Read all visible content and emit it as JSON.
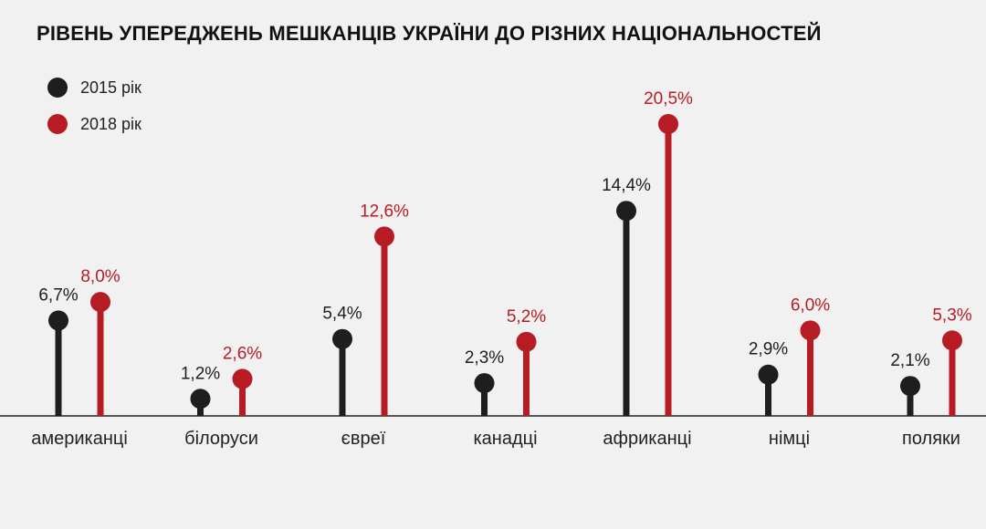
{
  "chart_data": {
    "type": "lollipop",
    "title": "РІВЕНЬ УПЕРЕДЖЕНЬ МЕШКАНЦІВ УКРАЇНИ ДО РІЗНИХ НАЦІОНАЛЬНОСТЕЙ",
    "categories": [
      "американці",
      "білоруси",
      "євреї",
      "канадці",
      "африканці",
      "німці",
      "поляки"
    ],
    "series": [
      {
        "name": "2015 рік",
        "color": "#1e1e1e",
        "values": [
          6.7,
          1.2,
          5.4,
          2.3,
          14.4,
          2.9,
          2.1
        ],
        "labels": [
          "6,7%",
          "1,2%",
          "5,4%",
          "2,3%",
          "14,4%",
          "2,9%",
          "2,1%"
        ]
      },
      {
        "name": "2018 рік",
        "color": "#b71c25",
        "values": [
          8.0,
          2.6,
          12.6,
          5.2,
          20.5,
          6.0,
          5.3
        ],
        "labels": [
          "8,0%",
          "2,6%",
          "12,6%",
          "5,2%",
          "20,5%",
          "6,0%",
          "5,3%"
        ]
      }
    ],
    "ylim": [
      0,
      20.5
    ],
    "legend_position": "top-left",
    "grid": false
  }
}
